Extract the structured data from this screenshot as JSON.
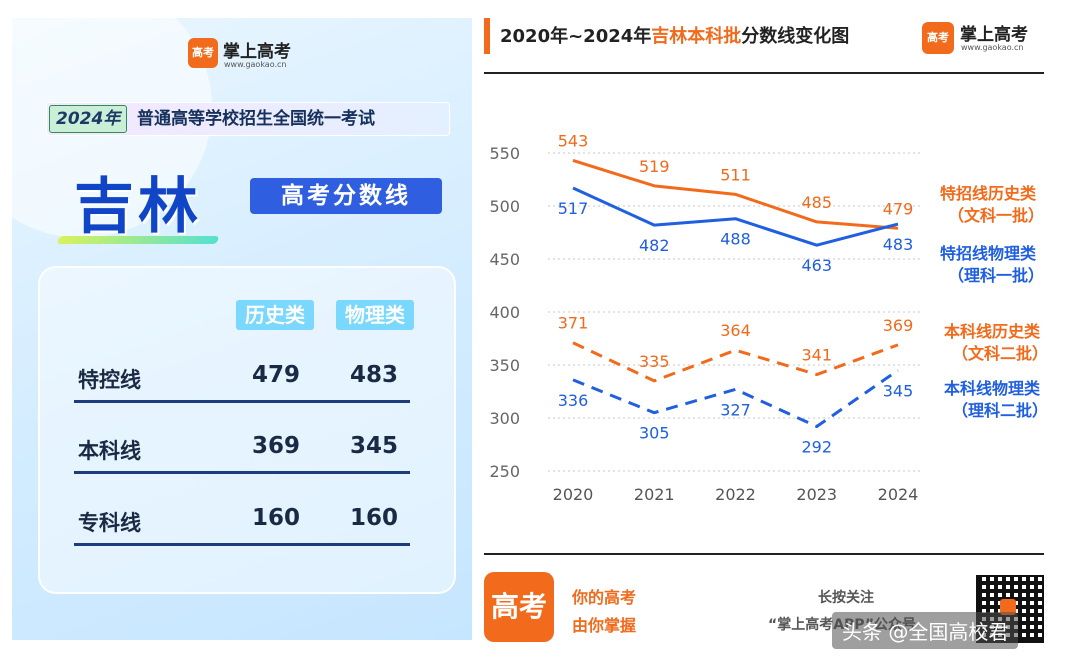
{
  "brand": {
    "logo_char": "高考",
    "name": "掌上高考",
    "url": "www.gaokao.cn"
  },
  "poster": {
    "year": "2024年",
    "exam_name": "普通高等学校招生全国统一考试",
    "province": "吉林",
    "title": "高考分数线",
    "columns": [
      "历史类",
      "物理类"
    ],
    "rows": [
      {
        "label": "特控线",
        "history": "479",
        "physics": "483"
      },
      {
        "label": "本科线",
        "history": "369",
        "physics": "345"
      },
      {
        "label": "专科线",
        "history": "160",
        "physics": "160"
      }
    ]
  },
  "chart_header": {
    "prefix": "2020年~2024年",
    "highlight": "吉林本科批",
    "suffix": "分数线变化图"
  },
  "chart_data": {
    "type": "line",
    "title": "2020年~2024年吉林本科批分数线变化图",
    "categories": [
      "2020",
      "2021",
      "2022",
      "2023",
      "2024"
    ],
    "y_ticks": [
      550,
      500,
      450,
      400,
      350,
      300,
      250
    ],
    "ylim": [
      250,
      550
    ],
    "grid": "horizontal-dotted",
    "series": [
      {
        "name": "特招线历史类",
        "name_sub": "（文科一批）",
        "values": [
          543,
          519,
          511,
          485,
          479
        ],
        "color": "#f26a1b",
        "dashed": false,
        "label_pos": "above"
      },
      {
        "name": "特招线物理类",
        "name_sub": "（理科一批）",
        "values": [
          517,
          482,
          488,
          463,
          483
        ],
        "color": "#1f5fe0",
        "dashed": false,
        "label_pos": "below"
      },
      {
        "name": "本科线历史类",
        "name_sub": "（文科二批）",
        "values": [
          371,
          335,
          364,
          341,
          369
        ],
        "color": "#f26a1b",
        "dashed": true,
        "label_pos": "above"
      },
      {
        "name": "本科线物理类",
        "name_sub": "（理科二批）",
        "values": [
          336,
          305,
          327,
          292,
          345
        ],
        "color": "#1f5fe0",
        "dashed": true,
        "label_pos": "below"
      }
    ],
    "legend": "right"
  },
  "footer": {
    "slogan_line1": "你的高考",
    "slogan_line2": "由你掌握",
    "follow_line1": "长按关注",
    "follow_line2": "“掌上高考APP”公众号"
  },
  "credit": "头条 @全国高校君",
  "colors": {
    "orange": "#f26a1b",
    "blue": "#1f5fe0",
    "navy": "#1145c7"
  }
}
